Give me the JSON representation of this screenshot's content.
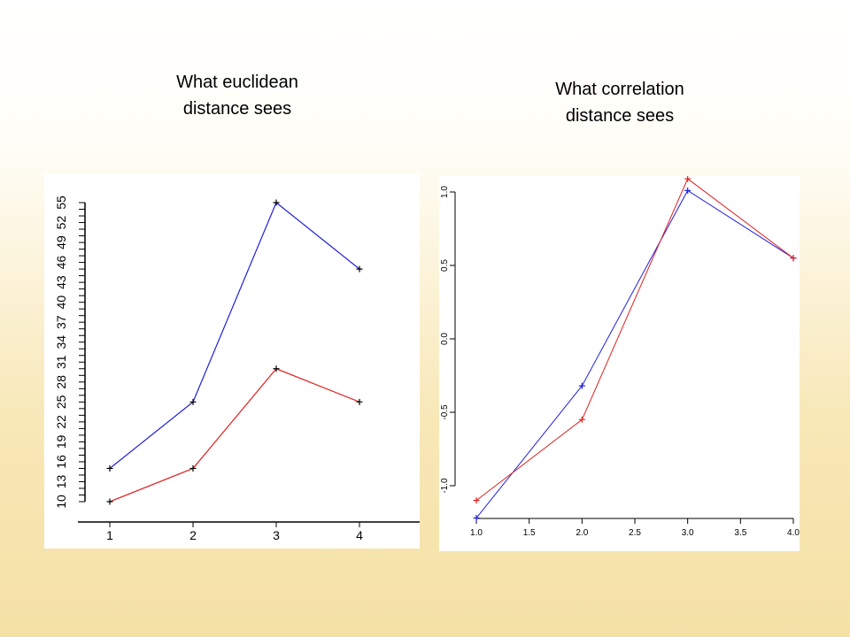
{
  "captions": {
    "left": [
      "What euclidean",
      "distance sees"
    ],
    "right": [
      "What correlation",
      "distance sees"
    ]
  },
  "colors": {
    "series_a": "#2020e0",
    "series_b": "#e02020"
  },
  "chart_data": [
    {
      "type": "line",
      "title": "",
      "xlabel": "",
      "ylabel": "",
      "x": [
        1,
        2,
        3,
        4
      ],
      "x_ticks": [
        "1",
        "2",
        "3",
        "4"
      ],
      "y_ticks": [
        "10",
        "13",
        "16",
        "19",
        "22",
        "25",
        "28",
        "31",
        "34",
        "37",
        "40",
        "43",
        "46",
        "49",
        "52",
        "55"
      ],
      "ylim": [
        10,
        55
      ],
      "series": [
        {
          "color": "blue",
          "values": [
            15,
            25,
            55,
            45
          ]
        },
        {
          "color": "red",
          "values": [
            10,
            15,
            30,
            25
          ]
        }
      ],
      "markers": "+",
      "grid": false
    },
    {
      "type": "line",
      "title": "",
      "xlabel": "",
      "ylabel": "",
      "x_ticks": [
        "1.0",
        "1.5",
        "2.0",
        "2.5",
        "3.0",
        "3.5",
        "4.0"
      ],
      "y_ticks": [
        "-1.0",
        "-0.5",
        "0.0",
        "0.5",
        "1.0"
      ],
      "xlim": [
        1.0,
        4.0
      ],
      "ylim": [
        -1.2,
        1.1
      ],
      "series": [
        {
          "color": "blue",
          "x": [
            1,
            2,
            3,
            4
          ],
          "values": [
            -1.22,
            -0.32,
            1.01,
            0.55
          ]
        },
        {
          "color": "red",
          "x": [
            1,
            2,
            3,
            4
          ],
          "values": [
            -1.1,
            -0.55,
            1.09,
            0.55
          ]
        }
      ],
      "markers": "+",
      "grid": false
    }
  ]
}
